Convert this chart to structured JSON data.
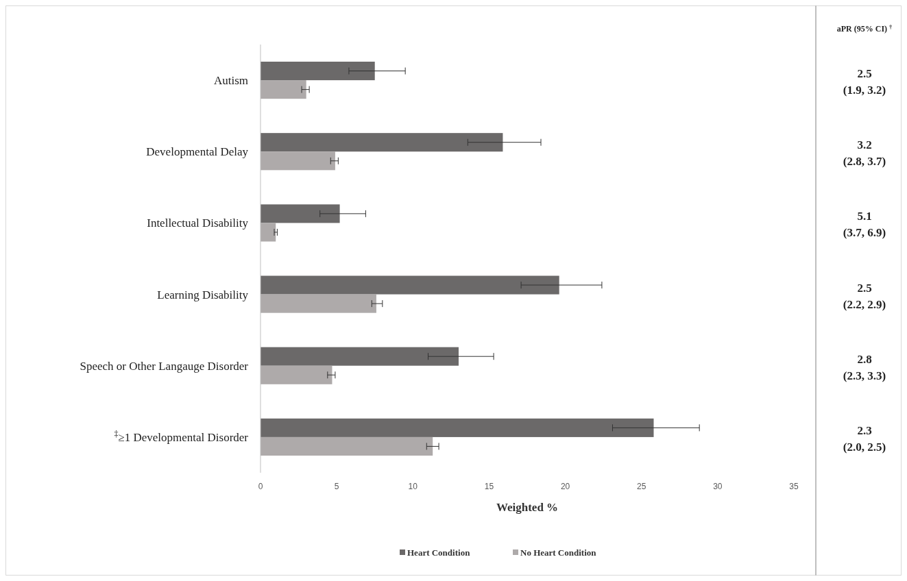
{
  "chart_data": {
    "type": "bar",
    "orientation": "horizontal",
    "xlabel": "Weighted %",
    "categories": [
      "Autism",
      "Developmental Delay",
      "Intellectual Disability",
      "Learning Disability",
      "Speech or Other Langauge Disorder",
      "$^{‡}$≥1 Developmental  Disorder"
    ],
    "series": [
      {
        "name": "Heart Condition",
        "color": "#6b6969",
        "values": [
          7.5,
          15.9,
          5.2,
          19.6,
          13.0,
          25.8
        ],
        "errors": [
          [
            5.8,
            9.5
          ],
          [
            13.6,
            18.4
          ],
          [
            3.9,
            6.9
          ],
          [
            17.1,
            22.4
          ],
          [
            11.0,
            15.3
          ],
          [
            23.1,
            28.8
          ]
        ]
      },
      {
        "name": "No Heart Condition",
        "color": "#aeaaaa",
        "values": [
          3.0,
          4.9,
          1.0,
          7.6,
          4.7,
          11.3
        ],
        "errors": [
          [
            2.7,
            3.2
          ],
          [
            4.6,
            5.1
          ],
          [
            0.9,
            1.1
          ],
          [
            7.3,
            8.0
          ],
          [
            4.4,
            4.9
          ],
          [
            10.9,
            11.7
          ]
        ]
      }
    ],
    "xlim": [
      0,
      35
    ],
    "xticks": [
      0,
      5,
      10,
      15,
      20,
      25,
      30,
      35
    ],
    "grid": false,
    "legend": "bottom",
    "annotations": [
      "aPR (95% CI) $^{†}$",
      "2.5\n(1.9, 3.2)",
      "3.2\n(2.8, 3.7)",
      "5.1\n(3.7, 6.9)",
      "2.5\n(2.2, 2.9)",
      "2.8\n(2.3, 3.3)",
      "2.3\n(2.0, 2.5)"
    ]
  }
}
